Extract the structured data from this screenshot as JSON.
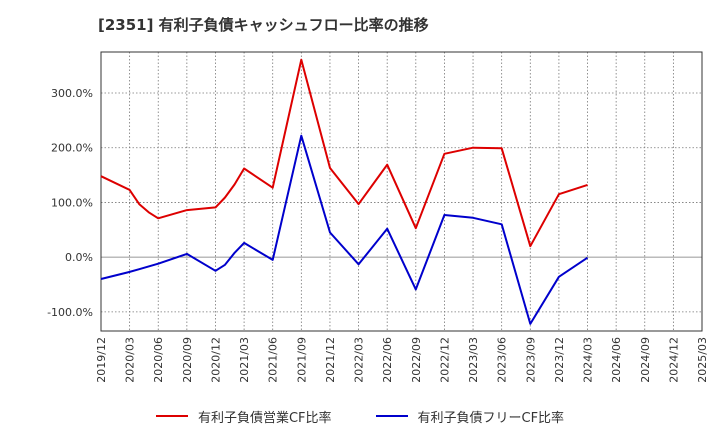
{
  "chart_data": {
    "type": "line",
    "title": "[2351]  有利子負債キャッシュフロー比率の推移",
    "xlabel": "",
    "ylabel": "",
    "ylim": [
      -135,
      375
    ],
    "yticks": [
      -100,
      0,
      100,
      200,
      300
    ],
    "ytick_labels": [
      "-100.0%",
      "0.0%",
      "100.0%",
      "200.0%",
      "300.0%"
    ],
    "x_ticks": [
      "2019/12",
      "2020/03",
      "2020/06",
      "2020/09",
      "2020/12",
      "2021/03",
      "2021/06",
      "2021/09",
      "2021/12",
      "2022/03",
      "2022/06",
      "2022/09",
      "2022/12",
      "2023/03",
      "2023/06",
      "2023/09",
      "2023/12",
      "2024/03",
      "2024/06",
      "2024/09",
      "2024/12",
      "2025/03"
    ],
    "grid": true,
    "legend_position": "bottom",
    "series": [
      {
        "name": "有利子負債営業CF比率",
        "color": "#dd0000",
        "points": [
          [
            "2019/12",
            148
          ],
          [
            "2020/03",
            123
          ],
          [
            "2020/04",
            97
          ],
          [
            "2020/05",
            82
          ],
          [
            "2020/06",
            71
          ],
          [
            "2020/09",
            86
          ],
          [
            "2020/12",
            91
          ],
          [
            "2021/01",
            109
          ],
          [
            "2021/02",
            133
          ],
          [
            "2021/03",
            162
          ],
          [
            "2021/06",
            127
          ],
          [
            "2021/09",
            361
          ],
          [
            "2021/12",
            163
          ],
          [
            "2022/03",
            97
          ],
          [
            "2022/06",
            169
          ],
          [
            "2022/09",
            53
          ],
          [
            "2022/12",
            189
          ],
          [
            "2023/03",
            200
          ],
          [
            "2023/06",
            199
          ],
          [
            "2023/09",
            20
          ],
          [
            "2023/12",
            115
          ],
          [
            "2024/03",
            132
          ]
        ]
      },
      {
        "name": "有利子負債フリーCF比率",
        "color": "#0000cc",
        "points": [
          [
            "2019/12",
            -40
          ],
          [
            "2020/03",
            -27
          ],
          [
            "2020/04",
            -22
          ],
          [
            "2020/05",
            -17
          ],
          [
            "2020/06",
            -12
          ],
          [
            "2020/09",
            6
          ],
          [
            "2020/12",
            -25
          ],
          [
            "2021/01",
            -14
          ],
          [
            "2021/02",
            8
          ],
          [
            "2021/03",
            26
          ],
          [
            "2021/06",
            -5
          ],
          [
            "2021/09",
            222
          ],
          [
            "2021/12",
            45
          ],
          [
            "2022/03",
            -13
          ],
          [
            "2022/06",
            52
          ],
          [
            "2022/09",
            -59
          ],
          [
            "2022/12",
            77
          ],
          [
            "2023/03",
            72
          ],
          [
            "2023/06",
            60
          ],
          [
            "2023/09",
            -122
          ],
          [
            "2023/12",
            -36
          ],
          [
            "2024/03",
            -1
          ]
        ]
      }
    ]
  }
}
